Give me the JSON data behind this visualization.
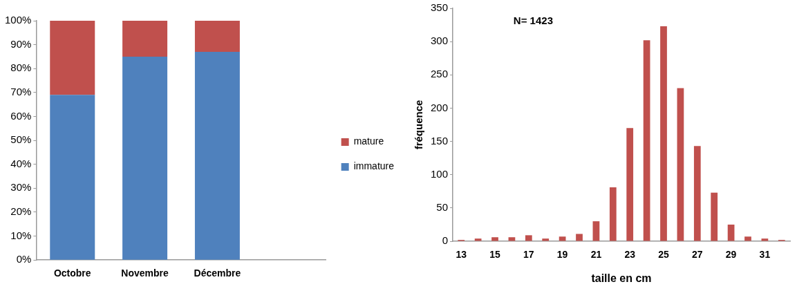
{
  "chart_data": [
    {
      "type": "bar",
      "stacked": true,
      "categories": [
        "Octobre",
        "Novembre",
        "Décembre",
        null
      ],
      "series": [
        {
          "name": "immature",
          "color": "#4f81bd",
          "values": [
            69,
            85,
            87,
            null
          ]
        },
        {
          "name": "mature",
          "color": "#c0504d",
          "values": [
            31,
            15,
            13,
            null
          ]
        }
      ],
      "ylim": [
        0,
        100
      ],
      "yticks": [
        {
          "value": 0,
          "label": "0%"
        },
        {
          "value": 10,
          "label": "10%"
        },
        {
          "value": 20,
          "label": "20%"
        },
        {
          "value": 30,
          "label": "30%"
        },
        {
          "value": 40,
          "label": "40%"
        },
        {
          "value": 50,
          "label": "50%"
        },
        {
          "value": 60,
          "label": "60%"
        },
        {
          "value": 70,
          "label": "70%"
        },
        {
          "value": 80,
          "label": "80%"
        },
        {
          "value": 90,
          "label": "90%"
        },
        {
          "value": 100,
          "label": "100%"
        }
      ],
      "grid": false,
      "legend": "right"
    },
    {
      "type": "bar",
      "xlabel": "taille en cm",
      "ylabel": "fréquence",
      "annotations": [
        "N= 1423"
      ],
      "categories": [
        "13",
        null,
        "15",
        null,
        "17",
        null,
        "19",
        null,
        "21",
        null,
        "23",
        null,
        "25",
        null,
        "27",
        null,
        "29",
        null,
        "31",
        null
      ],
      "values": [
        2,
        4,
        6,
        6,
        9,
        4,
        7,
        11,
        30,
        81,
        170,
        302,
        323,
        230,
        143,
        73,
        25,
        7,
        4,
        2
      ],
      "color": "#c0504d",
      "ylim": [
        0,
        350
      ],
      "yticks": [
        0,
        50,
        100,
        150,
        200,
        250,
        300,
        350
      ],
      "grid": false,
      "legend": false
    }
  ]
}
